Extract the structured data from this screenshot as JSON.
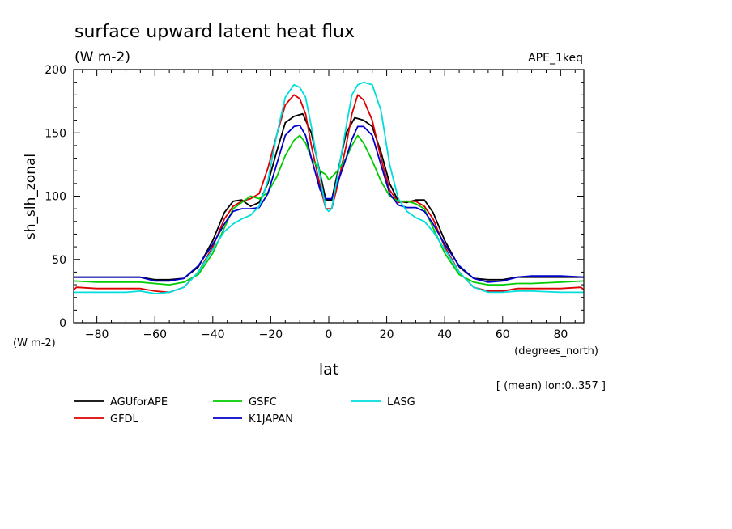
{
  "chart_data": {
    "type": "line",
    "title": "surface upward latent heat flux",
    "subtitle": "(W m-2)",
    "top_right_label": "APE_1keq",
    "ylabel": "sh_slh_zonal",
    "yunit": "(W m-2)",
    "xlabel": "lat",
    "xunit": "(degrees_north)",
    "footnote": "[ (mean) lon:0..357 ]",
    "xlim": [
      -88,
      88
    ],
    "ylim": [
      0,
      200
    ],
    "xticks": [
      -80,
      -60,
      -40,
      -20,
      0,
      20,
      40,
      60,
      80
    ],
    "yticks": [
      0,
      50,
      100,
      150,
      200
    ],
    "grid": false,
    "legend_position": "bottom-left",
    "series": [
      {
        "name": "AGUforAPE",
        "color": "#000000",
        "x": [
          -88,
          -80,
          -70,
          -65,
          -60,
          -55,
          -50,
          -45,
          -40,
          -36,
          -33,
          -30,
          -27,
          -24,
          -21,
          -18,
          -15,
          -12,
          -9,
          -6,
          -3,
          -1,
          0,
          1,
          3,
          6,
          9,
          12,
          15,
          18,
          21,
          24,
          27,
          30,
          33,
          36,
          40,
          45,
          50,
          55,
          60,
          65,
          70,
          80,
          88
        ],
        "y": [
          36,
          36,
          36,
          36,
          34,
          34,
          35,
          44,
          65,
          87,
          96,
          97,
          92,
          95,
          110,
          135,
          158,
          163,
          165,
          150,
          118,
          97,
          97,
          97,
          118,
          150,
          162,
          160,
          155,
          135,
          110,
          96,
          95,
          97,
          97,
          87,
          65,
          44,
          35,
          34,
          34,
          36,
          36,
          36,
          36
        ]
      },
      {
        "name": "GFDL",
        "color": "#dd0000",
        "x": [
          -88,
          -87,
          -80,
          -70,
          -65,
          -60,
          -55,
          -50,
          -45,
          -40,
          -36,
          -33,
          -30,
          -27,
          -24,
          -21,
          -18,
          -15,
          -12,
          -10,
          -8,
          -6,
          -3,
          -1,
          0,
          1,
          3,
          6,
          8,
          10,
          12,
          15,
          18,
          21,
          24,
          27,
          30,
          33,
          36,
          40,
          45,
          50,
          55,
          60,
          65,
          70,
          80,
          87,
          88
        ],
        "y": [
          26,
          28,
          27,
          27,
          27,
          25,
          24,
          28,
          40,
          60,
          82,
          92,
          96,
          98,
          102,
          122,
          148,
          172,
          180,
          177,
          165,
          140,
          108,
          90,
          90,
          90,
          108,
          140,
          165,
          180,
          176,
          160,
          130,
          105,
          95,
          96,
          96,
          92,
          82,
          60,
          40,
          28,
          25,
          25,
          27,
          27,
          27,
          28,
          26
        ]
      },
      {
        "name": "GSFC",
        "color": "#00cc00",
        "x": [
          -88,
          -80,
          -70,
          -65,
          -60,
          -55,
          -50,
          -45,
          -40,
          -36,
          -33,
          -30,
          -27,
          -24,
          -21,
          -18,
          -15,
          -12,
          -10,
          -8,
          -6,
          -3,
          -1,
          0,
          1,
          3,
          6,
          8,
          10,
          12,
          15,
          18,
          21,
          24,
          27,
          30,
          33,
          36,
          40,
          45,
          50,
          55,
          60,
          65,
          70,
          80,
          88
        ],
        "y": [
          33,
          32,
          32,
          32,
          31,
          30,
          32,
          38,
          55,
          75,
          90,
          95,
          100,
          98,
          103,
          115,
          132,
          144,
          148,
          142,
          130,
          120,
          117,
          113,
          115,
          120,
          130,
          140,
          148,
          142,
          128,
          112,
          100,
          96,
          96,
          94,
          90,
          75,
          55,
          38,
          32,
          30,
          30,
          31,
          31,
          32,
          33
        ]
      },
      {
        "name": "K1JAPAN",
        "color": "#0000cc",
        "x": [
          -88,
          -80,
          -70,
          -65,
          -60,
          -55,
          -50,
          -45,
          -40,
          -36,
          -33,
          -30,
          -27,
          -24,
          -21,
          -18,
          -15,
          -12,
          -10,
          -8,
          -6,
          -3,
          -1,
          0,
          1,
          3,
          6,
          8,
          10,
          12,
          15,
          18,
          21,
          24,
          27,
          30,
          33,
          36,
          40,
          45,
          50,
          55,
          60,
          65,
          70,
          80,
          88
        ],
        "y": [
          36,
          36,
          36,
          36,
          33,
          33,
          35,
          45,
          62,
          78,
          88,
          90,
          90,
          91,
          102,
          125,
          148,
          155,
          156,
          148,
          130,
          105,
          98,
          98,
          98,
          110,
          130,
          145,
          155,
          155,
          148,
          125,
          102,
          93,
          91,
          91,
          88,
          78,
          62,
          45,
          35,
          32,
          33,
          36,
          37,
          37,
          36
        ]
      },
      {
        "name": "LASG",
        "color": "#00dddd",
        "x": [
          -88,
          -80,
          -70,
          -65,
          -60,
          -55,
          -50,
          -45,
          -40,
          -36,
          -33,
          -30,
          -27,
          -24,
          -21,
          -18,
          -15,
          -12,
          -10,
          -8,
          -6,
          -3,
          -1,
          0,
          1,
          3,
          6,
          8,
          10,
          12,
          15,
          18,
          21,
          24,
          27,
          30,
          33,
          36,
          40,
          45,
          50,
          55,
          60,
          65,
          70,
          80,
          88
        ],
        "y": [
          24,
          24,
          24,
          25,
          23,
          24,
          28,
          40,
          58,
          72,
          78,
          82,
          85,
          92,
          112,
          148,
          178,
          188,
          186,
          178,
          155,
          115,
          90,
          88,
          90,
          115,
          155,
          180,
          188,
          190,
          188,
          168,
          125,
          98,
          88,
          83,
          80,
          72,
          58,
          40,
          28,
          24,
          24,
          25,
          25,
          24,
          24
        ]
      }
    ]
  }
}
